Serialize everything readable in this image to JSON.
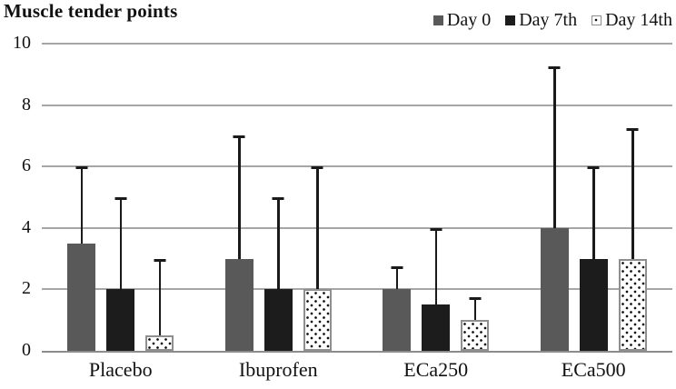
{
  "title": "Muscle tender points",
  "chart_data": {
    "type": "bar",
    "title": "Muscle tender points",
    "categories": [
      "Placebo",
      "Ibuprofen",
      "ECa250",
      "ECa500"
    ],
    "series": [
      {
        "name": "Day 0",
        "style": "solid-darkgray",
        "color": "#595959",
        "values": [
          3.5,
          3.0,
          2.0,
          4.0
        ],
        "errors_upper": [
          2.5,
          4.0,
          0.75,
          5.25
        ]
      },
      {
        "name": "Day 7th",
        "style": "solid-black",
        "color": "#1c1c1c",
        "values": [
          2.0,
          2.0,
          1.5,
          3.0
        ],
        "errors_upper": [
          3.0,
          3.0,
          2.5,
          3.0
        ]
      },
      {
        "name": "Day 14th",
        "style": "dotted-pattern",
        "color": "#ffffff",
        "values": [
          0.5,
          2.0,
          1.0,
          3.0
        ],
        "errors_upper": [
          2.5,
          4.0,
          0.75,
          4.25
        ]
      }
    ],
    "error_bars": "upper-only",
    "ylim": [
      0,
      10
    ],
    "yticks": [
      0,
      2,
      4,
      6,
      8,
      10
    ],
    "xlabel": "",
    "ylabel": "",
    "grid": true,
    "legend_position": "top-right"
  },
  "colors": {
    "gridline": "#a6a6a6",
    "baseline": "#8c8c8c",
    "error_bar": "#1a1a1a",
    "text": "#111111"
  }
}
